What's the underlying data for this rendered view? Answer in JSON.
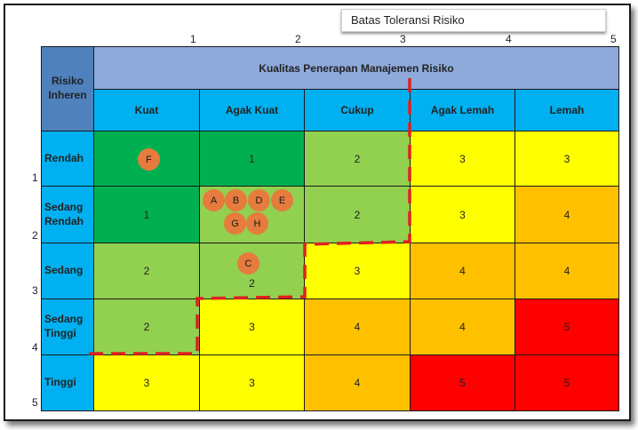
{
  "tolerance_label": "Batas Toleransi Risiko",
  "top_axis": [
    "1",
    "2",
    "3",
    "4",
    "5"
  ],
  "left_axis": [
    "1",
    "2",
    "3",
    "4",
    "5"
  ],
  "corner_header": {
    "line1": "Risiko",
    "line2": "Inheren"
  },
  "quality_header": "Kualitas Penerapan Manajemen Risiko",
  "columns": [
    "Kuat",
    "Agak Kuat",
    "Cukup",
    "Agak Lemah",
    "Lemah"
  ],
  "rows": [
    {
      "line1": "Rendah",
      "line2": ""
    },
    {
      "line1": "Sedang",
      "line2": "Rendah"
    },
    {
      "line1": "Sedang",
      "line2": ""
    },
    {
      "line1": "Sedang",
      "line2": "Tinggi"
    },
    {
      "line1": "Tinggi",
      "line2": ""
    }
  ],
  "values": [
    [
      "",
      "1",
      "2",
      "3",
      "3"
    ],
    [
      "1",
      "",
      "2",
      "3",
      "4"
    ],
    [
      "2",
      "2",
      "3",
      "4",
      "4"
    ],
    [
      "2",
      "3",
      "4",
      "4",
      "5"
    ],
    [
      "3",
      "3",
      "4",
      "5",
      "5"
    ]
  ],
  "markers": [
    "A",
    "B",
    "D",
    "E",
    "G",
    "H",
    "C",
    "F"
  ],
  "colors": {
    "header_blue": "#00b0f0",
    "title_blue": "#8eaadb",
    "corner_blue": "#4f81bd",
    "level1": "#00b050",
    "level2": "#92d050",
    "level3": "#ffff00",
    "level4": "#ffc000",
    "level5": "#ff0000",
    "marker": "#e57c3e",
    "tolerance_line": "#e02020"
  }
}
